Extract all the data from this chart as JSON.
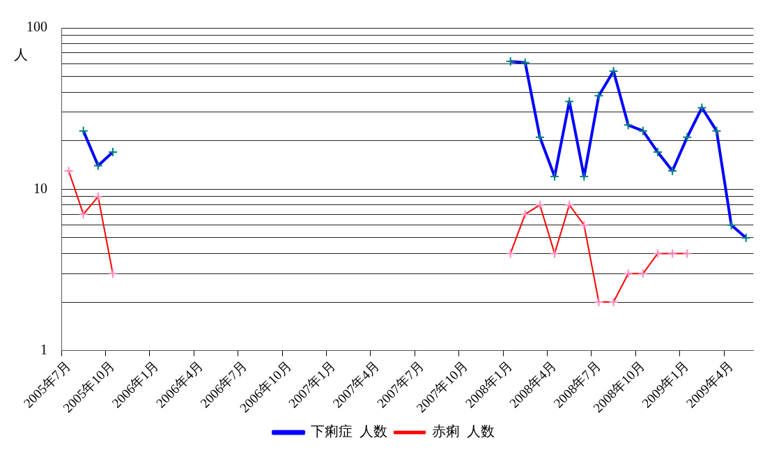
{
  "chart_data": {
    "type": "line",
    "ylabel": "人",
    "categories": [
      "2005年7月",
      null,
      null,
      "2005年10月",
      null,
      null,
      "2006年1月",
      null,
      null,
      "2006年4月",
      null,
      null,
      "2006年7月",
      null,
      null,
      "2006年10月",
      null,
      null,
      "2007年1月",
      null,
      null,
      "2007年4月",
      null,
      null,
      "2007年7月",
      null,
      null,
      "2007年10月",
      null,
      null,
      "2008年1月",
      null,
      null,
      "2008年4月",
      null,
      null,
      "2008年7月",
      null,
      null,
      "2008年10月",
      null,
      null,
      "2009年1月",
      null,
      null,
      "2009年4月",
      null
    ],
    "series": [
      {
        "name": "下痢症  人数",
        "color": "#0000ff",
        "marker": "cross",
        "values": [
          null,
          23,
          14,
          17,
          null,
          null,
          null,
          null,
          null,
          null,
          null,
          null,
          null,
          null,
          null,
          null,
          null,
          null,
          null,
          null,
          null,
          null,
          null,
          null,
          null,
          null,
          null,
          null,
          null,
          null,
          62,
          61,
          21,
          12,
          35,
          12,
          38,
          54,
          25,
          23,
          17,
          13,
          21,
          32,
          23,
          6,
          5
        ]
      },
      {
        "name": "赤痢  人数",
        "color": "#ff0000",
        "marker": "cross",
        "values": [
          13,
          7,
          9,
          3,
          null,
          null,
          null,
          null,
          null,
          null,
          null,
          null,
          null,
          null,
          null,
          null,
          null,
          null,
          null,
          null,
          null,
          null,
          null,
          null,
          null,
          null,
          null,
          null,
          null,
          null,
          4,
          7,
          8,
          4,
          8,
          6,
          2,
          2,
          3,
          3,
          4,
          4,
          4,
          null,
          null,
          null,
          null
        ]
      }
    ],
    "log": "y",
    "ylim": [
      1,
      100
    ],
    "yticks": [
      1,
      {
        "value": 2,
        "label": null
      },
      {
        "value": 3,
        "label": null
      },
      {
        "value": 4,
        "label": null
      },
      {
        "value": 5,
        "label": null
      },
      {
        "value": 6,
        "label": null
      },
      {
        "value": 7,
        "label": null
      },
      {
        "value": 8,
        "label": null
      },
      {
        "value": 9,
        "label": null
      },
      10,
      {
        "value": 20,
        "label": null
      },
      {
        "value": 30,
        "label": null
      },
      {
        "value": 40,
        "label": null
      },
      {
        "value": 50,
        "label": null
      },
      {
        "value": 60,
        "label": null
      },
      {
        "value": 70,
        "label": null
      },
      {
        "value": 80,
        "label": null
      },
      {
        "value": 90,
        "label": null
      },
      100
    ],
    "grid": "y",
    "legend": "bottom"
  }
}
